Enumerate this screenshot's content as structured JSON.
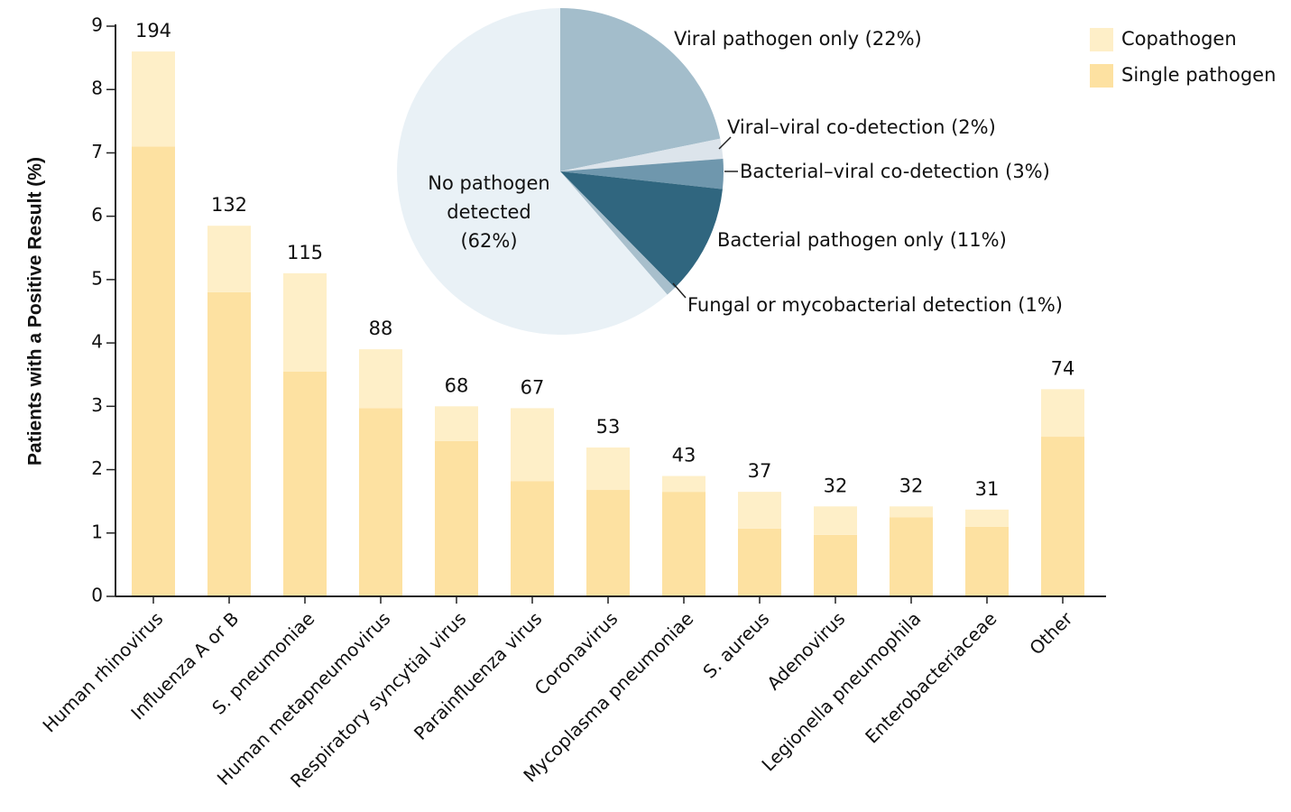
{
  "chart_data": [
    {
      "type": "bar",
      "y_label": "Patients with a Positive Result (%)",
      "categories": [
        "Human rhinovirus",
        "Influenza A or B",
        "S. pneumoniae",
        "Human metapneumovirus",
        "Respiratory syncytial virus",
        "Parainfluenza virus",
        "Coronavirus",
        "Mycoplasma pneumoniae",
        "S. aureus",
        "Adenovirus",
        "Legionella pneumophila",
        "Enterobacteriaceae",
        "Other"
      ],
      "series": [
        {
          "name": "Copathogen",
          "color": "#feefc8",
          "values": [
            1.5,
            1.05,
            1.55,
            0.93,
            0.55,
            1.15,
            0.67,
            0.25,
            0.58,
            0.45,
            0.17,
            0.27,
            0.75
          ]
        },
        {
          "name": "Single pathogen",
          "color": "#fde1a1",
          "values": [
            7.1,
            4.8,
            3.55,
            2.97,
            2.45,
            1.82,
            1.68,
            1.65,
            1.07,
            0.97,
            1.25,
            1.1,
            2.52
          ]
        }
      ],
      "counts": [
        194,
        132,
        115,
        88,
        68,
        67,
        53,
        43,
        37,
        32,
        32,
        31,
        74
      ],
      "ylim": [
        0,
        9
      ],
      "yticks": [
        0,
        1,
        2,
        3,
        4,
        5,
        6,
        7,
        8,
        9
      ],
      "legend": "upper right"
    },
    {
      "type": "pie",
      "categories": [
        "Viral pathogen only (22%)",
        "Viral–viral co-detection (2%)",
        "Bacterial–viral co-detection (3%)",
        "Bacterial pathogen only (11%)",
        "Fungal or mycobacterial detection (1%)",
        "No pathogen\ndetected\n(62%)"
      ],
      "values": [
        22,
        2,
        3,
        11,
        1,
        62
      ],
      "colors": [
        "#a3bdcb",
        "#dce4eb",
        "#6f97ad",
        "#30667f",
        "#a8bfcc",
        "#e9f1f6"
      ]
    }
  ]
}
